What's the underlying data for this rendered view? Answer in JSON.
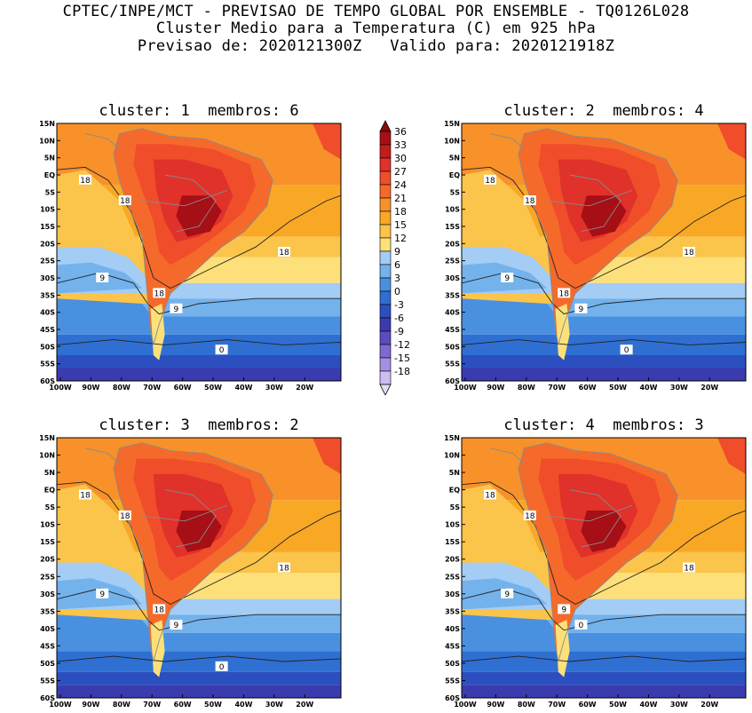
{
  "header": {
    "line1": "CPTEC/INPE/MCT - PREVISAO DE TEMPO GLOBAL POR ENSEMBLE - TQ0126L028",
    "line2": "Cluster Medio para a Temperatura (C) em 925 hPa",
    "line3": "Previsao de: 2020121300Z   Valido para: 2020121918Z"
  },
  "panels": [
    {
      "title": "cluster: 1  membros: 6",
      "contour_labels": [
        "18",
        "18",
        "18",
        "18",
        "9",
        "9",
        "0"
      ]
    },
    {
      "title": "cluster: 2  membros: 4",
      "contour_labels": [
        "18",
        "18",
        "18",
        "18",
        "9",
        "9",
        "0"
      ]
    },
    {
      "title": "cluster: 3  membros: 2",
      "contour_labels": [
        "18",
        "18",
        "18",
        "18",
        "9",
        "9",
        "0"
      ]
    },
    {
      "title": "cluster: 4  membros: 3",
      "contour_labels": [
        "18",
        "18",
        "18",
        "9",
        "9",
        "0"
      ]
    }
  ],
  "axes": {
    "lat_ticks": [
      "15N",
      "10N",
      "5N",
      "EQ",
      "5S",
      "10S",
      "15S",
      "20S",
      "25S",
      "30S",
      "35S",
      "40S",
      "45S",
      "50S",
      "55S",
      "60S"
    ],
    "lon_ticks": [
      "100W",
      "90W",
      "80W",
      "70W",
      "60W",
      "50W",
      "40W",
      "30W",
      "20W"
    ]
  },
  "colorbar": {
    "labels": [
      "36",
      "33",
      "30",
      "27",
      "24",
      "21",
      "18",
      "15",
      "12",
      "9",
      "6",
      "3",
      "0",
      "-3",
      "-6",
      "-9",
      "-12",
      "-15",
      "-18"
    ],
    "colors": [
      "#a50f15",
      "#c51b1b",
      "#e0312a",
      "#f04d2a",
      "#f56a2a",
      "#f8912a",
      "#f9a826",
      "#fbc44a",
      "#fde07a",
      "#a3cdf5",
      "#74b2ec",
      "#4a90e0",
      "#2f6fd2",
      "#2c4fc0",
      "#3b3bb0",
      "#5a4cc0",
      "#7f6ad0",
      "#a48fe0",
      "#cdbdf0"
    ]
  }
}
